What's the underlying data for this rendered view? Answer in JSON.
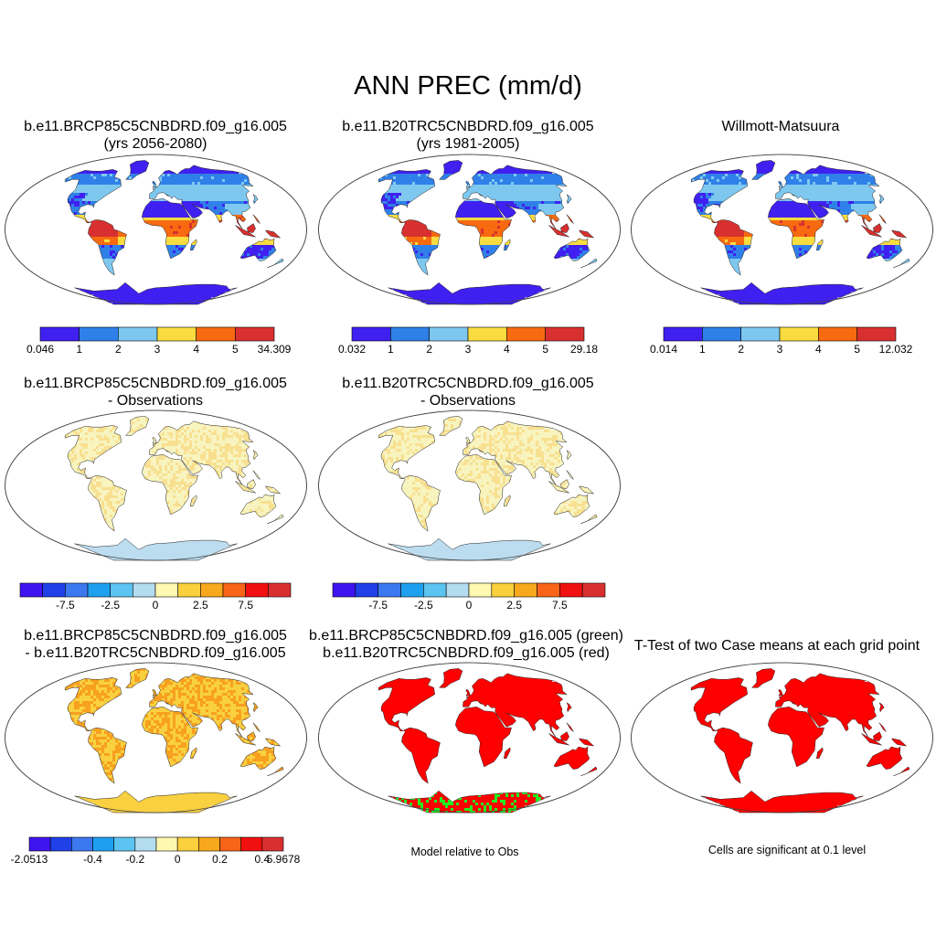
{
  "title": "ANN PREC (mm/d)",
  "panels": [
    {
      "id": "case1",
      "title_lines": [
        "b.e11.BRCP85C5CNBDRD.f09_g16.005",
        "(yrs 2056-2080)"
      ],
      "type": "absolute",
      "palette": [
        "#4020f0",
        "#2f80e8",
        "#7ec8f0",
        "#f8dc40",
        "#f86a10",
        "#d83030"
      ],
      "colorbar": {
        "colors": [
          "#4020f0",
          "#2f80e8",
          "#7ec8f0",
          "#f8dc40",
          "#f86a10",
          "#d83030"
        ],
        "labels": [
          "0.046",
          "1",
          "2",
          "3",
          "4",
          "5",
          "34.309"
        ],
        "label_mode": "edges"
      }
    },
    {
      "id": "case2",
      "title_lines": [
        "b.e11.B20TRC5CNBDRD.f09_g16.005",
        "(yrs 1981-2005)"
      ],
      "type": "absolute",
      "palette": [
        "#4020f0",
        "#2f80e8",
        "#7ec8f0",
        "#f8dc40",
        "#f86a10",
        "#d83030"
      ],
      "colorbar": {
        "colors": [
          "#4020f0",
          "#2f80e8",
          "#7ec8f0",
          "#f8dc40",
          "#f86a10",
          "#d83030"
        ],
        "labels": [
          "0.032",
          "1",
          "2",
          "3",
          "4",
          "5",
          "29.18"
        ],
        "label_mode": "edges"
      }
    },
    {
      "id": "obs",
      "title_lines": [
        "",
        "Willmott-Matsuura"
      ],
      "type": "absolute",
      "palette": [
        "#4020f0",
        "#2f80e8",
        "#7ec8f0",
        "#f8dc40",
        "#f86a10",
        "#d83030"
      ],
      "colorbar": {
        "colors": [
          "#4020f0",
          "#2f80e8",
          "#7ec8f0",
          "#f8dc40",
          "#f86a10",
          "#d83030"
        ],
        "labels": [
          "0.014",
          "1",
          "2",
          "3",
          "4",
          "5",
          "12.032"
        ],
        "label_mode": "edges"
      }
    },
    {
      "id": "diff1",
      "title_lines": [
        "b.e11.BRCP85C5CNBDRD.f09_g16.005",
        "- Observations"
      ],
      "type": "diff",
      "palette": [
        "#bcdcf0",
        "#f8f4c0",
        "#f8e090",
        "#fad060",
        "#f8b030",
        "#e0501a"
      ],
      "colorbar": {
        "colors": [
          "#4014f0",
          "#2040e8",
          "#3c78f0",
          "#1ea0f0",
          "#5cc4f0",
          "#b4dcf0",
          "#fff8b0",
          "#fad03c",
          "#f8a81c",
          "#f86418",
          "#f01010",
          "#d83030"
        ],
        "labels": [
          "-7.5",
          "-2.5",
          "0",
          "2.5",
          "7.5"
        ],
        "label_boundaries": [
          2,
          4,
          6,
          8,
          10
        ]
      }
    },
    {
      "id": "diff2",
      "title_lines": [
        "b.e11.B20TRC5CNBDRD.f09_g16.005",
        "- Observations"
      ],
      "type": "diff",
      "palette": [
        "#bcdcf0",
        "#f8f4c0",
        "#f8e090",
        "#fad060",
        "#f8b030",
        "#e0501a"
      ],
      "colorbar": {
        "colors": [
          "#4014f0",
          "#2040e8",
          "#3c78f0",
          "#1ea0f0",
          "#5cc4f0",
          "#b4dcf0",
          "#fff8b0",
          "#fad03c",
          "#f8a81c",
          "#f86418",
          "#f01010",
          "#d83030"
        ],
        "labels": [
          "-7.5",
          "-2.5",
          "0",
          "2.5",
          "7.5"
        ],
        "label_boundaries": [
          2,
          4,
          6,
          8,
          10
        ]
      }
    },
    {
      "id": "casediff",
      "title_lines": [
        "b.e11.BRCP85C5CNBDRD.f09_g16.005",
        "- b.e11.B20TRC5CNBDRD.f09_g16.005"
      ],
      "type": "casediff",
      "palette": [
        "#f8d040",
        "#f8a020",
        "#f06418",
        "#e83018",
        "#3c78f0",
        "#b4dcf0"
      ],
      "colorbar": {
        "colors": [
          "#4014f0",
          "#2040e8",
          "#3c78f0",
          "#1ea0f0",
          "#5cc4f0",
          "#b4dcf0",
          "#fff8b0",
          "#fad03c",
          "#f8a81c",
          "#f86418",
          "#f01010",
          "#d83030"
        ],
        "labels": [
          "-2.0513",
          "-0.4",
          "-0.2",
          "0",
          "0.2",
          "0.4",
          "5.9678"
        ],
        "label_boundaries": [
          0,
          3,
          5,
          7,
          9,
          11,
          12
        ]
      }
    },
    {
      "id": "relative",
      "title_lines": [
        "b.e11.BRCP85C5CNBDRD.f09_g16.005 (green)",
        "b.e11.B20TRC5CNBDRD.f09_g16.005 (red)"
      ],
      "type": "relative",
      "palette": [
        "#ff0000",
        "#22ee22"
      ],
      "note": "Model relative to Obs"
    },
    {
      "id": "ttest",
      "title_lines": [
        "T-Test of two Case means at each grid point",
        ""
      ],
      "type": "ttest",
      "palette": [
        "#ff0000"
      ],
      "note": "Cells are significant at 0.1 level"
    }
  ]
}
